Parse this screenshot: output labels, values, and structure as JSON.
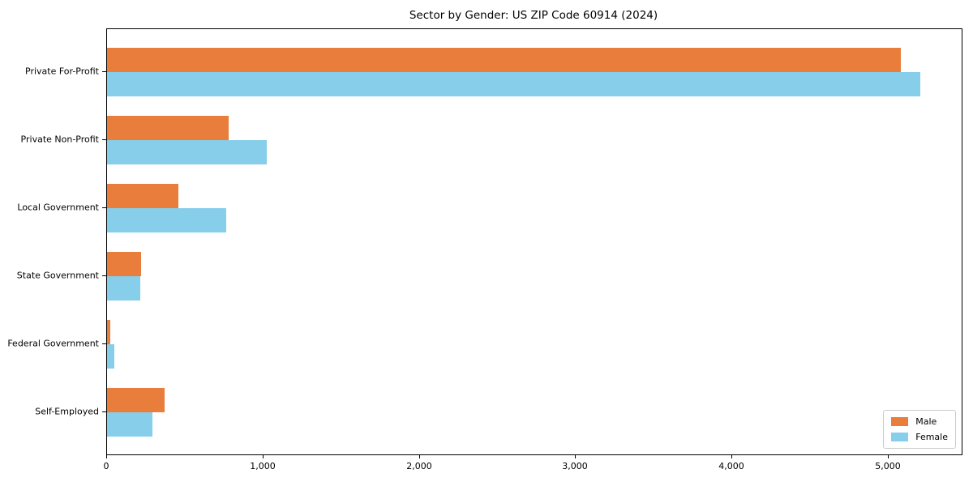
{
  "chart_data": {
    "type": "bar",
    "orientation": "horizontal",
    "title": "Sector by Gender: US ZIP Code 60914 (2024)",
    "categories": [
      "Private For-Profit",
      "Private Non-Profit",
      "Local Government",
      "State Government",
      "Federal Government",
      "Self-Employed"
    ],
    "series": [
      {
        "name": "Male",
        "color": "#e87d3c",
        "values": [
          5080,
          780,
          455,
          220,
          20,
          370
        ]
      },
      {
        "name": "Female",
        "color": "#87ceeb",
        "values": [
          5200,
          1020,
          760,
          215,
          45,
          290
        ]
      }
    ],
    "xlabel": "",
    "ylabel": "",
    "xlim": [
      0,
      5467
    ],
    "x_ticks": {
      "values": [
        0,
        1000,
        2000,
        3000,
        4000,
        5000
      ],
      "labels": [
        "0",
        "1,000",
        "2,000",
        "3,000",
        "4,000",
        "5,000"
      ]
    },
    "grid": false,
    "legend": {
      "position": "lower right",
      "entries": [
        {
          "label": "Male",
          "color": "#e87d3c"
        },
        {
          "label": "Female",
          "color": "#87ceeb"
        }
      ]
    }
  },
  "colors": {
    "male": "#e87d3c",
    "female": "#87ceeb",
    "axis": "#000000",
    "legend_border": "#cccccc",
    "background": "#ffffff"
  }
}
